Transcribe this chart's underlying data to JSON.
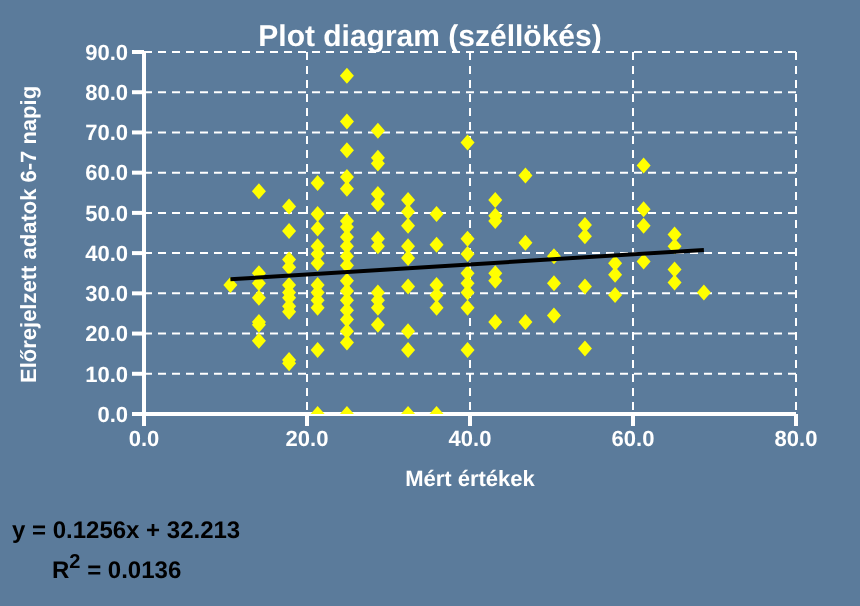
{
  "chart_data": {
    "type": "scatter",
    "title": "Plot diagram (széllökés)",
    "xlabel": "Mért értékek",
    "ylabel": "Előrejelzett adatok 6-7 napig",
    "xlim": [
      0,
      80
    ],
    "xticks": [
      {
        "value": 0,
        "label": "0.0"
      },
      {
        "value": 20,
        "label": "20.0"
      },
      {
        "value": 40,
        "label": "40.0"
      },
      {
        "value": 60,
        "label": "60.0"
      },
      {
        "value": 80,
        "label": "80.0"
      }
    ],
    "ylim": [
      0,
      90
    ],
    "yticks": [
      {
        "value": 0,
        "label": "0.0"
      },
      {
        "value": 10,
        "label": "10.0"
      },
      {
        "value": 20,
        "label": "20.0"
      },
      {
        "value": 30,
        "label": "30.0"
      },
      {
        "value": 40,
        "label": "40.0"
      },
      {
        "value": 50,
        "label": "50.0"
      },
      {
        "value": 60,
        "label": "60.0"
      },
      {
        "value": 70,
        "label": "70.0"
      },
      {
        "value": 80,
        "label": "80.0"
      },
      {
        "value": 90,
        "label": "90.0"
      }
    ],
    "grid": true,
    "legend": false,
    "marker": "diamond",
    "series": [
      {
        "color": "#ffff00",
        "x": [
          10.6,
          14.1,
          14.1,
          14.1,
          14.1,
          14.1,
          14.1,
          14.1,
          17.8,
          17.8,
          17.8,
          17.8,
          17.8,
          17.8,
          17.8,
          17.8,
          17.8,
          17.8,
          17.8,
          21.3,
          21.3,
          21.3,
          21.3,
          21.3,
          21.3,
          21.3,
          21.3,
          21.3,
          21.3,
          21.3,
          21.3,
          24.9,
          24.9,
          24.9,
          24.9,
          24.9,
          24.9,
          24.9,
          24.9,
          24.9,
          24.9,
          24.9,
          24.9,
          24.9,
          24.9,
          24.9,
          24.9,
          24.9,
          24.9,
          24.9,
          28.7,
          28.7,
          28.7,
          28.7,
          28.7,
          28.7,
          28.7,
          28.7,
          28.7,
          28.7,
          28.7,
          32.4,
          32.4,
          32.4,
          32.4,
          32.4,
          32.4,
          32.4,
          32.4,
          32.4,
          35.9,
          35.9,
          35.9,
          35.9,
          35.9,
          35.9,
          39.7,
          39.7,
          39.7,
          39.7,
          39.7,
          39.7,
          39.7,
          39.7,
          43.1,
          43.1,
          43.1,
          43.1,
          43.1,
          43.1,
          46.8,
          46.8,
          46.8,
          50.3,
          50.3,
          50.3,
          54.1,
          54.1,
          54.1,
          54.1,
          57.8,
          57.8,
          57.8,
          61.3,
          61.3,
          61.3,
          61.3,
          65.1,
          65.1,
          65.1,
          65.1,
          68.7
        ],
        "values": [
          32.1,
          55.4,
          35,
          32.5,
          28.9,
          22.9,
          22.2,
          18.2,
          51.6,
          45.5,
          38.4,
          36.5,
          32.1,
          30.2,
          28.9,
          26.8,
          25.4,
          13.4,
          12.6,
          57.4,
          49.7,
          46.1,
          41.7,
          39.8,
          37.5,
          32.1,
          30.2,
          28.3,
          26.4,
          15.9,
          0,
          84.1,
          72.7,
          65.6,
          58.9,
          56,
          48,
          46.5,
          44,
          41.7,
          39.2,
          36.9,
          33.1,
          30.6,
          28.3,
          25.8,
          23.5,
          20.6,
          17.8,
          0,
          70.4,
          63.7,
          62.3,
          54.7,
          52.2,
          43.6,
          41.7,
          30.2,
          28.3,
          26.4,
          22.2,
          53.2,
          50.3,
          46.8,
          41.7,
          38.8,
          31.7,
          20.6,
          15.9,
          0,
          49.7,
          42.1,
          32.1,
          29.6,
          26.4,
          0,
          67.5,
          43.6,
          39.8,
          35,
          32.5,
          30.2,
          26.4,
          15.9,
          53.2,
          49.3,
          48,
          35,
          33.1,
          22.9,
          59.3,
          42.6,
          22.9,
          39.2,
          32.5,
          24.5,
          47,
          44.2,
          31.7,
          16.3,
          37.5,
          34.6,
          29.6,
          61.8,
          50.9,
          46.8,
          37.9,
          44.6,
          41.7,
          35.9,
          32.7,
          30.2
        ]
      },
      {
        "type": "line",
        "color": "#000000",
        "marker": "none",
        "x": [
          10.6,
          68.7
        ],
        "values": [
          33.5,
          40.8
        ]
      }
    ],
    "annotations": [
      "y = 0.1256x + 32.213",
      "R$^{2}$ = 0.0136"
    ]
  }
}
